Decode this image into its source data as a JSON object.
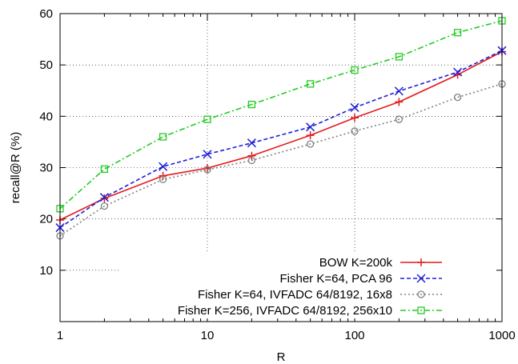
{
  "chart_data": {
    "type": "line",
    "title": "",
    "xlabel": "R",
    "ylabel": "recall@R (%)",
    "x_scale": "log",
    "xlim": [
      1,
      1000
    ],
    "ylim": [
      0,
      60
    ],
    "x_ticks": [
      1,
      10,
      100,
      1000
    ],
    "x_tick_labels": [
      "1",
      "10",
      "100",
      "1000"
    ],
    "y_ticks": [
      10,
      20,
      30,
      40,
      50,
      60
    ],
    "y_tick_labels": [
      "10",
      "20",
      "30",
      "40",
      "50",
      "60"
    ],
    "grid": true,
    "legend_position": "bottom-right",
    "series": [
      {
        "name": "BOW K=200k",
        "color": "#e41a1c",
        "dash": "solid",
        "marker": "plus",
        "x": [
          1,
          2,
          5,
          10,
          20,
          50,
          100,
          200,
          500,
          1000
        ],
        "y": [
          19.8,
          24.0,
          28.4,
          29.9,
          32.3,
          36.3,
          39.7,
          42.8,
          48.1,
          52.6
        ]
      },
      {
        "name": "Fisher K=64, PCA 96",
        "color": "#1f1fd6",
        "dash": "dashed",
        "marker": "cross",
        "x": [
          1,
          2,
          5,
          10,
          20,
          50,
          100,
          200,
          500,
          1000
        ],
        "y": [
          18.3,
          24.2,
          30.2,
          32.6,
          34.8,
          37.9,
          41.7,
          44.9,
          48.6,
          52.8
        ]
      },
      {
        "name": "Fisher K=64, IVFADC 64/8192, 16x8",
        "color": "#808080",
        "dash": "dotted",
        "marker": "circle",
        "x": [
          1,
          2,
          5,
          10,
          20,
          50,
          100,
          200,
          500,
          1000
        ],
        "y": [
          16.7,
          22.5,
          27.7,
          29.6,
          31.4,
          34.6,
          37.1,
          39.4,
          43.7,
          46.3
        ]
      },
      {
        "name": "Fisher K=256, IVFADC 64/8192, 256x10",
        "color": "#22cc22",
        "dash": "dashdot",
        "marker": "square",
        "x": [
          1,
          2,
          5,
          10,
          20,
          50,
          100,
          200,
          500,
          1000
        ],
        "y": [
          22.0,
          29.7,
          36.0,
          39.4,
          42.3,
          46.3,
          49.0,
          51.6,
          56.3,
          58.6
        ]
      }
    ]
  }
}
